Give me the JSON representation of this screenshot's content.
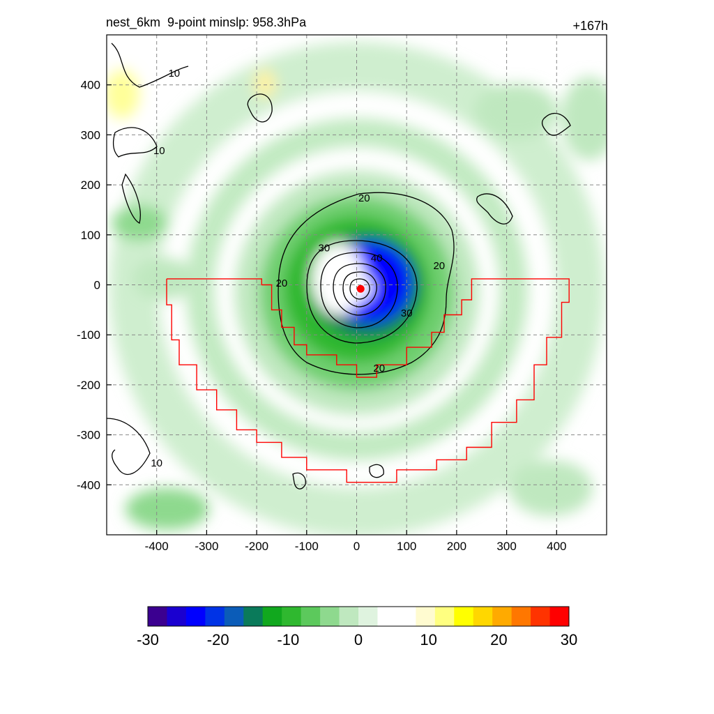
{
  "header": {
    "title": "nest_6km  9-point minslp: 958.3hPa",
    "time_label": "+167h"
  },
  "chart_data": {
    "type": "heatmap",
    "title": "nest_6km  9-point minslp: 958.3hPa",
    "time_label": "+167h",
    "xlim": [
      -500,
      500
    ],
    "ylim": [
      -500,
      500
    ],
    "x_ticks": [
      -400,
      -300,
      -200,
      -100,
      0,
      100,
      200,
      300,
      400
    ],
    "y_ticks": [
      400,
      300,
      200,
      100,
      0,
      -100,
      -200,
      -300,
      -400
    ],
    "grid": true,
    "colorbar": {
      "range": [
        -30,
        30
      ],
      "ticks": [
        -30,
        -20,
        -10,
        0,
        10,
        20,
        30
      ],
      "colors": [
        "#3b0090",
        "#1a00d0",
        "#0000ff",
        "#0033e6",
        "#0b5cb8",
        "#0a7a5a",
        "#11a81e",
        "#2fb82f",
        "#5cc95c",
        "#8ed98e",
        "#bfe8bf",
        "#dff3df",
        "#ffffff",
        "#ffffff",
        "#fffbd0",
        "#ffff80",
        "#ffff00",
        "#ffd700",
        "#ffaa00",
        "#ff7700",
        "#ff3300",
        "#ff0000"
      ]
    },
    "contour_labels": [
      {
        "text": "10",
        "x": -365,
        "y": 425
      },
      {
        "text": "10",
        "x": -395,
        "y": 270
      },
      {
        "text": "10",
        "x": -400,
        "y": -355
      },
      {
        "text": "20",
        "x": 15,
        "y": 175
      },
      {
        "text": "20",
        "x": -150,
        "y": 5
      },
      {
        "text": "20",
        "x": 165,
        "y": 40
      },
      {
        "text": "20",
        "x": 45,
        "y": -165
      },
      {
        "text": "30",
        "x": -65,
        "y": 75
      },
      {
        "text": "30",
        "x": 100,
        "y": -55
      },
      {
        "text": "40",
        "x": 40,
        "y": 55
      }
    ],
    "center_marker": {
      "x": 8,
      "y": -8,
      "color": "#ff0000"
    },
    "region_outline": {
      "color": "#ff0000",
      "points": [
        [
          -380,
          12
        ],
        [
          -190,
          12
        ],
        [
          -190,
          0
        ],
        [
          -170,
          0
        ],
        [
          -170,
          -50
        ],
        [
          -150,
          -50
        ],
        [
          -150,
          -85
        ],
        [
          -125,
          -85
        ],
        [
          -125,
          -120
        ],
        [
          -100,
          -120
        ],
        [
          -100,
          -140
        ],
        [
          -40,
          -140
        ],
        [
          -40,
          -160
        ],
        [
          0,
          -160
        ],
        [
          0,
          -185
        ],
        [
          40,
          -185
        ],
        [
          40,
          -160
        ],
        [
          100,
          -160
        ],
        [
          100,
          -125
        ],
        [
          150,
          -125
        ],
        [
          150,
          -95
        ],
        [
          175,
          -95
        ],
        [
          175,
          -60
        ],
        [
          210,
          -60
        ],
        [
          210,
          -30
        ],
        [
          230,
          -30
        ],
        [
          230,
          12
        ],
        [
          425,
          12
        ],
        [
          425,
          -35
        ],
        [
          410,
          -35
        ],
        [
          410,
          -105
        ],
        [
          380,
          -105
        ],
        [
          380,
          -160
        ],
        [
          355,
          -160
        ],
        [
          355,
          -230
        ],
        [
          320,
          -230
        ],
        [
          320,
          -275
        ],
        [
          270,
          -275
        ],
        [
          270,
          -325
        ],
        [
          220,
          -325
        ],
        [
          220,
          -350
        ],
        [
          160,
          -350
        ],
        [
          160,
          -370
        ],
        [
          80,
          -370
        ],
        [
          80,
          -395
        ],
        [
          -20,
          -395
        ],
        [
          -20,
          -370
        ],
        [
          -100,
          -370
        ],
        [
          -100,
          -345
        ],
        [
          -150,
          -345
        ],
        [
          -150,
          -315
        ],
        [
          -200,
          -315
        ],
        [
          -200,
          -290
        ],
        [
          -240,
          -290
        ],
        [
          -240,
          -250
        ],
        [
          -280,
          -250
        ],
        [
          -280,
          -210
        ],
        [
          -320,
          -210
        ],
        [
          -320,
          -160
        ],
        [
          -355,
          -160
        ],
        [
          -355,
          -110
        ],
        [
          -370,
          -110
        ],
        [
          -370,
          -40
        ],
        [
          -380,
          -40
        ],
        [
          -380,
          12
        ]
      ]
    }
  }
}
